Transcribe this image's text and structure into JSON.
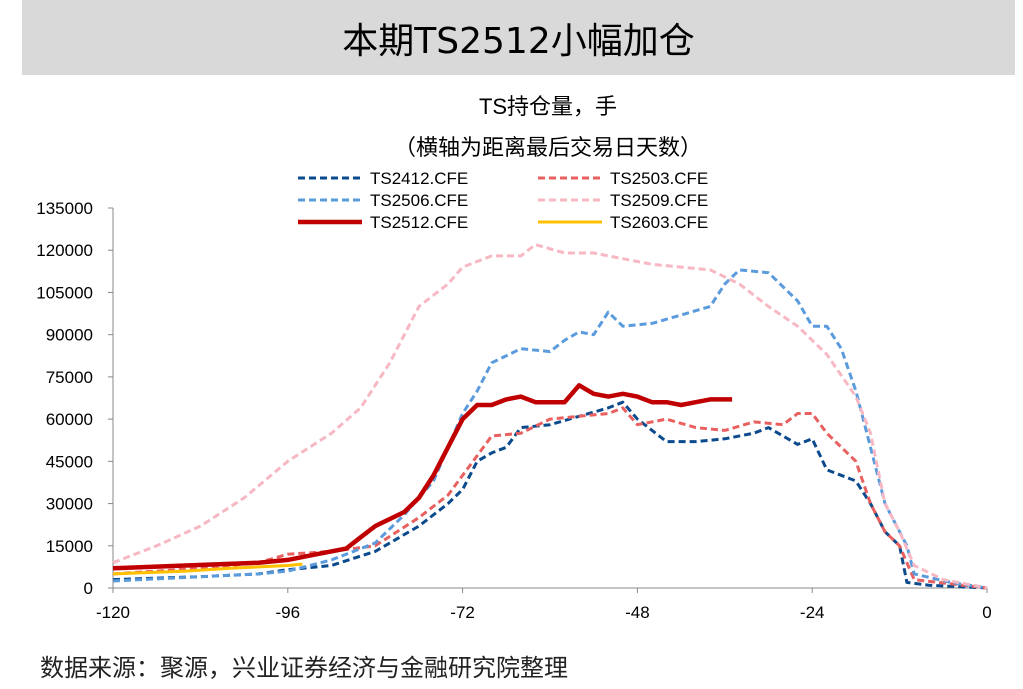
{
  "banner_title": "本期TS2512小幅加仓",
  "source_note": "数据来源：聚源，兴业证券经济与金融研究院整理",
  "chart_data": {
    "type": "line",
    "title": "TS持仓量，手",
    "subtitle": "（横轴为距离最后交易日天数）",
    "xlabel": "",
    "ylabel": "",
    "xlim": [
      -120,
      0
    ],
    "ylim": [
      0,
      135000
    ],
    "xticks": [
      -120,
      -96,
      -72,
      -48,
      -24,
      0
    ],
    "yticks": [
      0,
      15000,
      30000,
      45000,
      60000,
      75000,
      90000,
      105000,
      120000,
      135000
    ],
    "grid": false,
    "legend_position": "top",
    "series": [
      {
        "name": "TS2412.CFE",
        "color": "#0b4a8c",
        "style": "dashed",
        "width": 3,
        "x": [
          -120,
          -108,
          -100,
          -96,
          -90,
          -84,
          -78,
          -74,
          -72,
          -70,
          -68,
          -66,
          -64,
          -60,
          -56,
          -52,
          -50,
          -48,
          -44,
          -40,
          -36,
          -32,
          -30,
          -26,
          -24,
          -22,
          -18,
          -16,
          -14,
          -12,
          -11,
          -8,
          -4,
          0
        ],
        "y": [
          3000,
          4000,
          5000,
          6500,
          8000,
          13000,
          22000,
          30000,
          35000,
          45000,
          48000,
          50000,
          57000,
          58000,
          61000,
          64000,
          66000,
          60000,
          52000,
          52000,
          53000,
          55000,
          57000,
          51000,
          53000,
          42000,
          38000,
          30000,
          20000,
          15000,
          2000,
          1000,
          500,
          0
        ]
      },
      {
        "name": "TS2503.CFE",
        "color": "#e8605f",
        "style": "dashed",
        "width": 3,
        "x": [
          -120,
          -108,
          -100,
          -96,
          -90,
          -84,
          -78,
          -74,
          -72,
          -70,
          -68,
          -64,
          -60,
          -56,
          -52,
          -50,
          -48,
          -44,
          -40,
          -36,
          -32,
          -28,
          -26,
          -24,
          -22,
          -18,
          -16,
          -14,
          -12,
          -10,
          -5,
          0
        ],
        "y": [
          5000,
          7000,
          9000,
          12000,
          13000,
          15000,
          25000,
          33000,
          40000,
          47000,
          54000,
          55000,
          60000,
          61000,
          62000,
          64000,
          58000,
          60000,
          57000,
          56000,
          59000,
          58000,
          62000,
          62000,
          55000,
          45000,
          30000,
          20000,
          15000,
          3000,
          1500,
          0
        ]
      },
      {
        "name": "TS2506.CFE",
        "color": "#5b9bdc",
        "style": "dashed",
        "width": 3,
        "x": [
          -120,
          -100,
          -96,
          -90,
          -84,
          -80,
          -76,
          -72,
          -70,
          -68,
          -64,
          -60,
          -58,
          -56,
          -54,
          -52,
          -50,
          -46,
          -42,
          -38,
          -36,
          -34,
          -30,
          -26,
          -24,
          -22,
          -20,
          -18,
          -16,
          -14,
          -12,
          -11,
          -10,
          -5,
          0
        ],
        "y": [
          2500,
          5000,
          6000,
          10000,
          16000,
          26000,
          38000,
          62000,
          70000,
          80000,
          85000,
          84000,
          88000,
          91000,
          90000,
          98000,
          93000,
          94000,
          97000,
          100000,
          108000,
          113000,
          112000,
          102000,
          93000,
          93000,
          85000,
          70000,
          50000,
          30000,
          20000,
          15000,
          5000,
          2000,
          0
        ]
      },
      {
        "name": "TS2509.CFE",
        "color": "#f7b8c3",
        "style": "dashed",
        "width": 3,
        "x": [
          -120,
          -114,
          -108,
          -102,
          -96,
          -90,
          -86,
          -82,
          -78,
          -74,
          -72,
          -68,
          -64,
          -62,
          -58,
          -54,
          -50,
          -46,
          -42,
          -38,
          -34,
          -30,
          -26,
          -22,
          -18,
          -16,
          -14,
          -12,
          -10,
          -6,
          0
        ],
        "y": [
          9000,
          15000,
          22000,
          32000,
          45000,
          55000,
          64000,
          80000,
          100000,
          108000,
          114000,
          118000,
          118000,
          122000,
          119000,
          119000,
          117000,
          115000,
          114000,
          113000,
          108000,
          100000,
          93000,
          83000,
          68000,
          55000,
          30000,
          20000,
          8000,
          3000,
          0
        ]
      },
      {
        "name": "TS2512.CFE",
        "color": "#c00000",
        "style": "solid",
        "width": 4.5,
        "x": [
          -120,
          -110,
          -100,
          -96,
          -92,
          -88,
          -86,
          -84,
          -80,
          -78,
          -76,
          -74,
          -72,
          -70,
          -68,
          -66,
          -64,
          -62,
          -60,
          -58,
          -56,
          -54,
          -52,
          -50,
          -48,
          -46,
          -44,
          -42,
          -40,
          -38,
          -36,
          -35
        ],
        "y": [
          7000,
          8000,
          9000,
          10000,
          12000,
          14000,
          18000,
          22000,
          27000,
          32000,
          40000,
          50000,
          60000,
          65000,
          65000,
          67000,
          68000,
          66000,
          66000,
          66000,
          72000,
          69000,
          68000,
          69000,
          68000,
          66000,
          66000,
          65000,
          66000,
          67000,
          67000,
          67000
        ]
      },
      {
        "name": "TS2603.CFE",
        "color": "#ffc000",
        "style": "solid",
        "width": 3,
        "x": [
          -120,
          -110,
          -104,
          -100,
          -96,
          -94
        ],
        "y": [
          5000,
          6000,
          7000,
          7500,
          8000,
          8500
        ]
      }
    ]
  }
}
